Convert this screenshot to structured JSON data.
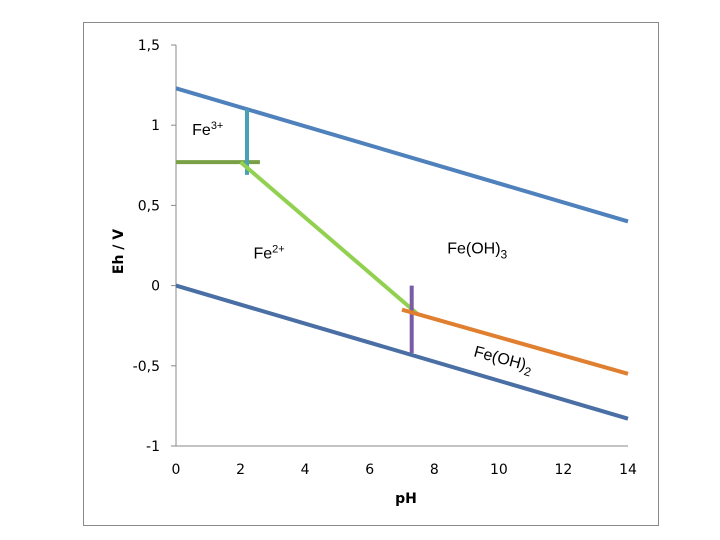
{
  "chart_data": {
    "type": "line",
    "title": "",
    "xlabel": "pH",
    "ylabel": "Eh / V",
    "xlim": [
      0,
      14
    ],
    "ylim": [
      -1,
      1.5
    ],
    "x_ticks": [
      "0",
      "2",
      "4",
      "6",
      "8",
      "10",
      "12",
      "14"
    ],
    "x_tick_values": [
      0,
      2,
      4,
      6,
      8,
      10,
      12,
      14
    ],
    "y_ticks": [
      "1,5",
      "1",
      "0,5",
      "0",
      "-0,5",
      "-1"
    ],
    "y_tick_values": [
      1.5,
      1,
      0.5,
      0,
      -0.5,
      -1
    ],
    "grid": false,
    "series": [
      {
        "color": "#4f81bd",
        "points": [
          [
            0,
            1.23
          ],
          [
            14,
            0.4
          ]
        ]
      },
      {
        "color": "#4a6fa5",
        "points": [
          [
            0,
            0.0
          ],
          [
            14,
            -0.83
          ]
        ]
      },
      {
        "color": "#79a046",
        "points": [
          [
            0,
            0.77
          ],
          [
            2.6,
            0.77
          ]
        ]
      },
      {
        "color": "#4aa0b4",
        "points": [
          [
            2.2,
            1.1
          ],
          [
            2.2,
            0.69
          ]
        ]
      },
      {
        "color": "#92d050",
        "points": [
          [
            2.0,
            0.77
          ],
          [
            7.5,
            -0.18
          ]
        ]
      },
      {
        "color": "#7b5aa6",
        "points": [
          [
            7.3,
            0.0
          ],
          [
            7.3,
            -0.42
          ]
        ]
      },
      {
        "color": "#e07f2f",
        "points": [
          [
            7.0,
            -0.15
          ],
          [
            14,
            -0.55
          ]
        ]
      }
    ],
    "annotations": [
      {
        "base": "Fe",
        "sup": "3+",
        "x": 0.5,
        "y": 0.94
      },
      {
        "base": "Fe",
        "sup": "2+",
        "x": 2.4,
        "y": 0.17
      },
      {
        "base": "Fe(OH)",
        "sub": "3",
        "x": 8.4,
        "y": 0.2
      },
      {
        "base": "Fe(OH)",
        "sub": "2",
        "x": 9.2,
        "y": -0.44,
        "rotate": 15
      }
    ]
  }
}
